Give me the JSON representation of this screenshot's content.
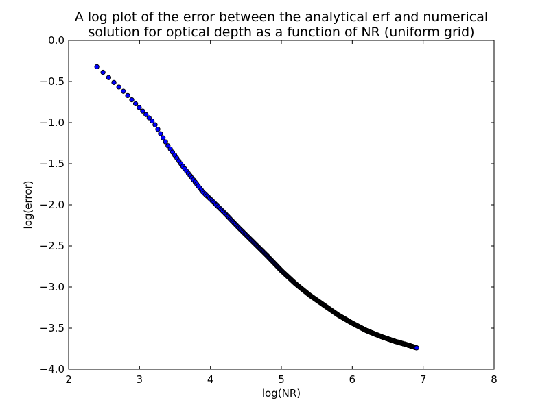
{
  "chart_data": {
    "type": "scatter",
    "title_lines": [
      "A log plot of the error between the analytical erf and numerical",
      "solution for optical depth as a function of NR (uniform grid)"
    ],
    "xlabel": "log(NR)",
    "ylabel": "log(error)",
    "xlim": [
      2,
      8
    ],
    "ylim": [
      -4.0,
      0.0
    ],
    "x_ticks": [
      2,
      3,
      4,
      5,
      6,
      7,
      8
    ],
    "x_tick_labels": [
      "2",
      "3",
      "4",
      "5",
      "6",
      "7",
      "8"
    ],
    "y_ticks": [
      0.0,
      -0.5,
      -1.0,
      -1.5,
      -2.0,
      -2.5,
      -3.0,
      -3.5,
      -4.0
    ],
    "y_tick_labels": [
      "0.0",
      "−0.5",
      "−1.0",
      "−1.5",
      "−2.0",
      "−2.5",
      "−3.0",
      "−3.5",
      "−4.0"
    ],
    "grid": false,
    "marker_face_color": "#0000ff",
    "marker_edge_color": "#000000",
    "series": [
      {
        "description_points": "x = log(NR) for NR = 11..1000, y = log(error) read off curve",
        "curve_x": [
          2.398,
          2.5,
          2.6,
          2.7,
          2.8,
          3.0,
          3.2,
          3.4,
          3.6,
          3.8,
          3.9,
          4.0,
          4.2,
          4.4,
          4.6,
          4.8,
          5.0,
          5.2,
          5.4,
          5.6,
          5.8,
          6.0,
          6.2,
          6.4,
          6.6,
          6.8,
          6.908
        ],
        "curve_y": [
          -0.32,
          -0.4,
          -0.48,
          -0.56,
          -0.64,
          -0.82,
          -1.0,
          -1.28,
          -1.52,
          -1.74,
          -1.85,
          -1.93,
          -2.1,
          -2.28,
          -2.45,
          -2.62,
          -2.8,
          -2.96,
          -3.1,
          -3.22,
          -3.34,
          -3.44,
          -3.53,
          -3.6,
          -3.66,
          -3.71,
          -3.74
        ],
        "n_start": 11,
        "n_end": 1000
      }
    ]
  }
}
